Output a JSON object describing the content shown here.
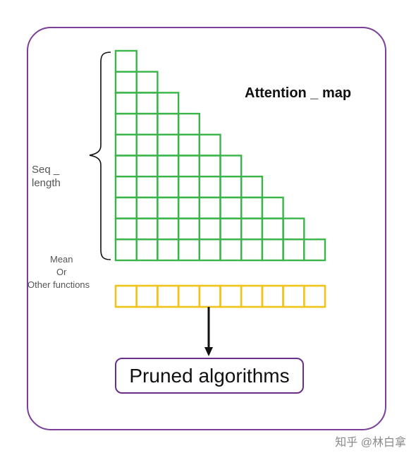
{
  "diagram": {
    "title": "Attention _ map",
    "seq_label": [
      "Seq _",
      "length"
    ],
    "aggregation_label": [
      "Mean",
      "Or",
      "Other functions"
    ],
    "result_label": "Pruned algorithms",
    "watermark": "知乎 @林白拿",
    "colors": {
      "frame": "#7b3f98",
      "grid": "#3ab54a",
      "bar": "#f0c419",
      "text": "#111111",
      "muted": "#555555",
      "arrow": "#111111"
    }
  }
}
